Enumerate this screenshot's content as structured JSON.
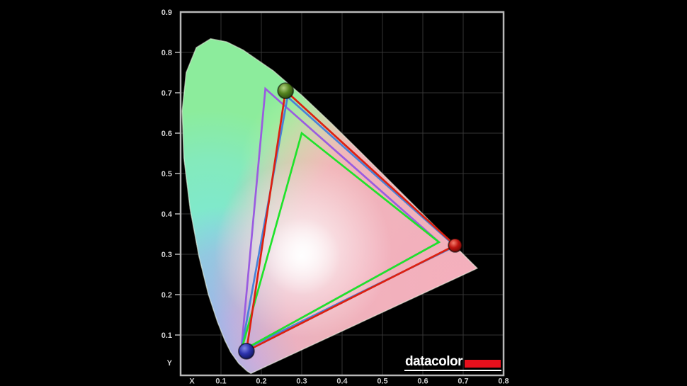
{
  "description": "CIE 1931 xy chromaticity diagram with colour gamut triangles (Datacolor)",
  "colors": {
    "background": "#000000",
    "plot_border": "#b8b8b8",
    "grid": "#353535",
    "tick_label": "#cfcfcf",
    "locus_base_green": "#8cec9c",
    "logo_bar_red": "#e8101c"
  },
  "axes": {
    "x_title": "X",
    "y_title": "Y",
    "x_tick_labels": [
      "0.1",
      "0.2",
      "0.3",
      "0.4",
      "0.5",
      "0.6",
      "0.7",
      "0.8"
    ],
    "y_tick_labels": [
      "0.9",
      "0.8",
      "0.7",
      "0.6",
      "0.5",
      "0.4",
      "0.3",
      "0.2",
      "0.1"
    ]
  },
  "chart_data": {
    "type": "line",
    "subtype": "chromaticity-gamut-diagram",
    "xlabel": "X",
    "ylabel": "Y",
    "xlim": [
      0,
      0.8
    ],
    "ylim": [
      0,
      0.9
    ],
    "grid": true,
    "series": [
      {
        "name": "purple-gamut-triangle",
        "color": "#9a5ce0",
        "vertices": [
          [
            0.21,
            0.71
          ],
          [
            0.64,
            0.33
          ],
          [
            0.15,
            0.06
          ]
        ]
      },
      {
        "name": "blue-gamut-triangle",
        "color": "#4a82d8",
        "vertices": [
          [
            0.265,
            0.69
          ],
          [
            0.68,
            0.32
          ],
          [
            0.15,
            0.06
          ]
        ]
      },
      {
        "name": "green-gamut-triangle",
        "color": "#1fe32a",
        "vertices": [
          [
            0.3,
            0.6
          ],
          [
            0.64,
            0.33
          ],
          [
            0.15,
            0.06
          ]
        ]
      },
      {
        "name": "red-gamut-triangle",
        "color": "#dd2010",
        "vertices": [
          [
            0.26,
            0.705
          ],
          [
            0.68,
            0.322
          ],
          [
            0.163,
            0.06
          ]
        ]
      }
    ],
    "points": [
      {
        "id": "green",
        "name": "green-primary-dot",
        "x": 0.26,
        "y": 0.705,
        "r": 11
      },
      {
        "id": "red",
        "name": "red-primary-dot",
        "x": 0.68,
        "y": 0.322,
        "r": 9.5
      },
      {
        "id": "blue",
        "name": "blue-primary-dot",
        "x": 0.163,
        "y": 0.06,
        "r": 11
      }
    ]
  },
  "logo": {
    "text": "datacolor"
  }
}
